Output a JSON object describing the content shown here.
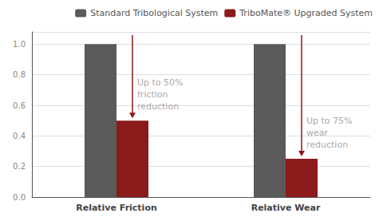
{
  "chart_data": {
    "type": "bar",
    "categories": [
      "Relative Friction",
      "Relative Wear"
    ],
    "series": [
      {
        "name": "Standard Tribological System",
        "color": "#5a5a5a",
        "values": [
          1.0,
          1.0
        ]
      },
      {
        "name": "TriboMate® Upgraded System",
        "color": "#8B1A1A",
        "values": [
          0.5,
          0.25
        ]
      }
    ],
    "ylim": [
      0,
      1.08
    ],
    "yticks": [
      {
        "value": 0,
        "label": "0.0"
      },
      0.2,
      0.4,
      0.6,
      0.8,
      {
        "value": 1.0,
        "label": "1.0"
      }
    ],
    "grid": true,
    "legend": "upper right",
    "annotations": [
      {
        "text": "Up to 50%\nfriction\nreduction",
        "category": "Relative Friction",
        "series": "TriboMate® Upgraded System"
      },
      {
        "text": "Up to 75%\nwear\nreduction",
        "category": "Relative Wear",
        "series": "TriboMate® Upgraded System"
      }
    ]
  }
}
